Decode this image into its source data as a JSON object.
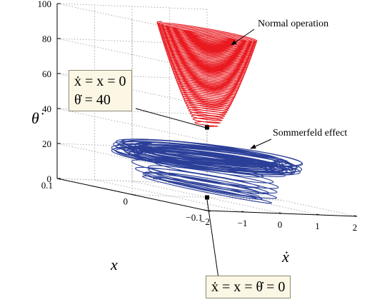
{
  "chart_data": {
    "type": "line",
    "projection": "3d",
    "xlabel": "ẋ",
    "ylabel": "x",
    "zlabel": "θ̇",
    "xlim": [
      -2,
      2
    ],
    "ylim": [
      -0.1,
      0.1
    ],
    "zlim": [
      0,
      100
    ],
    "x_ticks": [
      "−2",
      "−1",
      "0",
      "1",
      "2"
    ],
    "y_ticks": [
      "0.1",
      "0",
      "−0.1"
    ],
    "z_ticks": [
      "0",
      "20",
      "40",
      "60",
      "80",
      "100"
    ],
    "grid": true,
    "series": [
      {
        "role": "Normal operation",
        "color": "#e8191f",
        "start": {
          "xdot": 0,
          "x": 0,
          "thetadot": 40
        },
        "thetadot_range": [
          40,
          95
        ],
        "xdot_amplitude_range": [
          0.25,
          1.0
        ]
      },
      {
        "role": "Sommerfeld effect",
        "color": "#2b3f99",
        "start": {
          "xdot": 0,
          "x": 0,
          "thetadot": 0
        },
        "thetadot_range": [
          0,
          26
        ],
        "xdot_amplitude_range": [
          0.3,
          1.9
        ]
      }
    ],
    "annotations": [
      {
        "text": "Normal operation"
      },
      {
        "text": "Sommerfeld effect"
      }
    ],
    "callouts": [
      {
        "lines": [
          "ẋ = x = 0",
          "θ̇ = 40"
        ]
      },
      {
        "lines": [
          "ẋ = x = θ̇ = 0"
        ]
      }
    ]
  }
}
